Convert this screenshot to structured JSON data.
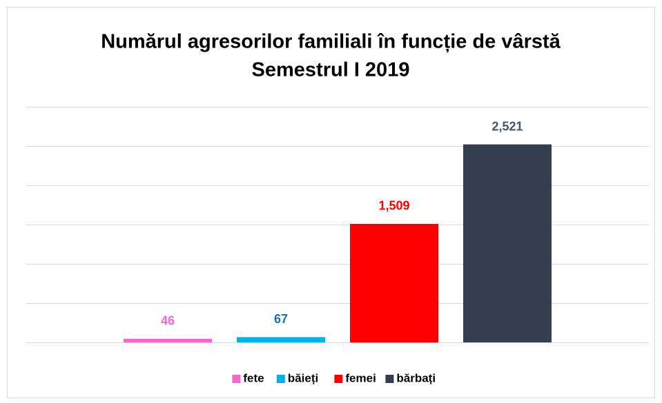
{
  "chart_data": {
    "type": "bar",
    "title": "Numărul agresorilor familiali în funcție de vârstă",
    "subtitle": "Semestrul I 2019",
    "categories": [
      null
    ],
    "series": [
      {
        "name": "fete",
        "color": "#f766cc",
        "values": [
          46
        ]
      },
      {
        "name": "băieți",
        "color": "#00b0f0",
        "label_color": "#1f6fb0",
        "values": [
          67
        ]
      },
      {
        "name": "femei",
        "color": "#ff0000",
        "values": [
          1509
        ],
        "value_labels": [
          "1,509"
        ]
      },
      {
        "name": "bărbați",
        "color": "#333f50",
        "label_color": "#44546a",
        "values": [
          2521
        ],
        "value_labels": [
          "2,521"
        ]
      }
    ],
    "ylim": [
      0,
      3000
    ],
    "yticks": [
      0,
      500,
      1000,
      1500,
      2000,
      2500,
      3000
    ],
    "grid": true,
    "legend": "bottom"
  }
}
